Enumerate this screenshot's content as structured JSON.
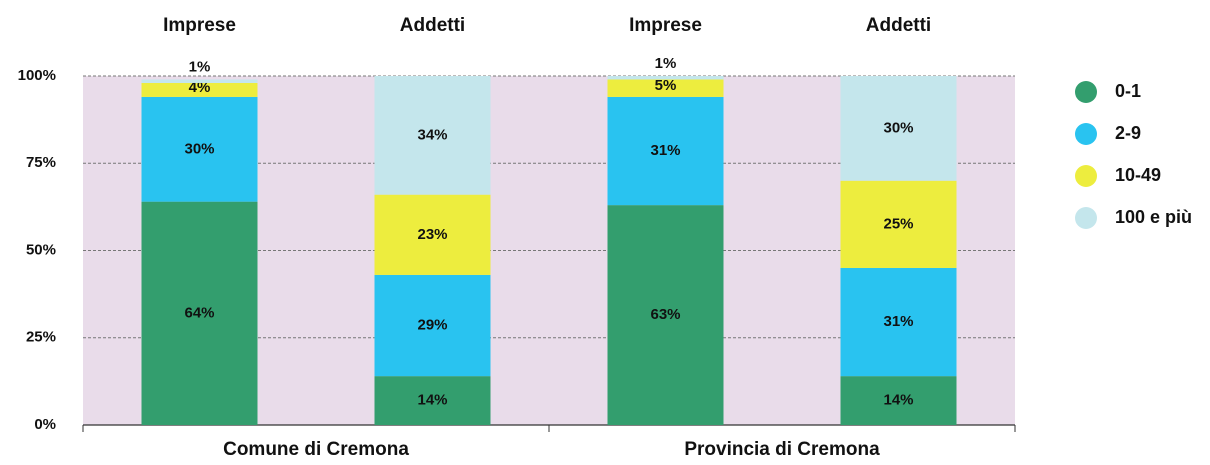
{
  "chart_data": {
    "type": "stacked_bar",
    "categories": [
      "Imprese",
      "Addetti",
      "Imprese",
      "Addetti"
    ],
    "groups": [
      "Comune di Cremona",
      "Provincia di Cremona"
    ],
    "series": [
      {
        "name": "0-1",
        "color": "#339e6e",
        "values": [
          64,
          14,
          63,
          14
        ],
        "value_labels": [
          "64%",
          "14%",
          "63%",
          "14%"
        ]
      },
      {
        "name": "2-9",
        "color": "#29c3f0",
        "values": [
          30,
          29,
          31,
          31
        ],
        "value_labels": [
          "30%",
          "29%",
          "31%",
          "31%"
        ]
      },
      {
        "name": "10-49",
        "color": "#eded3e",
        "values": [
          4,
          23,
          5,
          25
        ],
        "value_labels": [
          "4%",
          "23%",
          "5%",
          "25%"
        ]
      },
      {
        "name": "100 e più",
        "color": "#c4e6ec",
        "values": [
          1,
          34,
          1,
          30
        ],
        "value_labels": [
          "1%",
          "34%",
          "1%",
          "30%"
        ]
      }
    ],
    "ylim": [
      0,
      100
    ],
    "yticks": [
      {
        "value": 0,
        "label": "0%"
      },
      {
        "value": 25,
        "label": "25%"
      },
      {
        "value": 50,
        "label": "50%"
      },
      {
        "value": 75,
        "label": "75%"
      },
      {
        "value": 100,
        "label": "100%"
      }
    ],
    "grid": true,
    "legend": "right"
  }
}
